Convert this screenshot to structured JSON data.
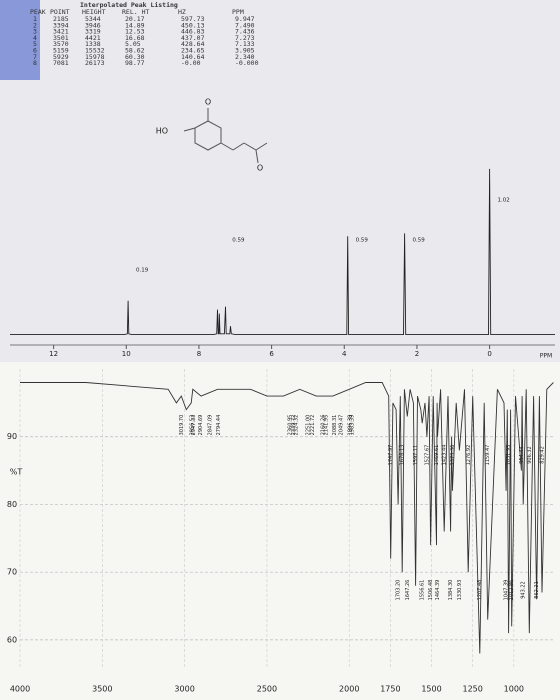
{
  "peak_listing": {
    "title": "Interpolated Peak Listing",
    "headers": [
      "PEAK",
      "POINT",
      "HEIGHT",
      "REL. HT",
      "HZ",
      "PPM"
    ],
    "rows": [
      [
        "1",
        "2185",
        "5344",
        "20.17",
        "597.73",
        "9.947"
      ],
      [
        "2",
        "3394",
        "3946",
        "14.89",
        "450.13",
        "7.490"
      ],
      [
        "3",
        "3421",
        "3319",
        "12.53",
        "446.83",
        "7.436"
      ],
      [
        "4",
        "3501",
        "4421",
        "16.68",
        "437.07",
        "7.273"
      ],
      [
        "5",
        "3570",
        "1338",
        "5.05",
        "428.64",
        "7.133"
      ],
      [
        "6",
        "5159",
        "15532",
        "58.62",
        "234.65",
        "3.905"
      ],
      [
        "7",
        "5929",
        "15978",
        "60.30",
        "140.64",
        "2.340"
      ],
      [
        "8",
        "7081",
        "26173",
        "98.77",
        "-0.00",
        "-0.000"
      ]
    ]
  },
  "structure": {
    "labels": [
      "HO",
      "O",
      "O"
    ]
  },
  "chart_data": [
    {
      "type": "line",
      "xlabel": "PPM",
      "color": "#222222",
      "x": [
        13.2,
        10.05,
        9.97,
        9.95,
        9.93,
        9.85,
        7.6,
        7.51,
        7.49,
        7.47,
        7.45,
        7.44,
        7.42,
        7.3,
        7.27,
        7.25,
        7.15,
        7.13,
        7.11,
        7.0,
        3.93,
        3.905,
        3.88,
        2.37,
        2.34,
        2.31,
        0.03,
        0,
        -0.03,
        -1.8
      ],
      "values": [
        0,
        0,
        0.5,
        20.17,
        0.5,
        0,
        0,
        0.5,
        14.89,
        0.5,
        0.5,
        12.53,
        0.5,
        0.5,
        16.68,
        0.5,
        0.5,
        5.05,
        0.5,
        0,
        0,
        58.62,
        0,
        0,
        60.3,
        0,
        0,
        98.77,
        0,
        0
      ],
      "xlim": [
        13.2,
        -1.8
      ],
      "ylim": [
        -2,
        110
      ],
      "xticks": [
        12,
        10,
        8,
        6,
        4,
        2,
        0
      ],
      "integrals": {
        "x": [
          9.95,
          7.3,
          3.905,
          2.34,
          0
        ],
        "values": [
          0.19,
          0.59,
          0.59,
          0.59,
          1.02
        ]
      }
    },
    {
      "type": "line",
      "ylabel": "%T",
      "color": "#333333",
      "grid": true,
      "x": [
        4000,
        3600,
        3100,
        3050,
        3020,
        2990,
        2960,
        2950,
        2900,
        2800,
        2600,
        2500,
        2400,
        2300,
        2200,
        2100,
        2000,
        1900,
        1800,
        1760,
        1748,
        1735,
        1715,
        1703,
        1690,
        1678,
        1665,
        1647,
        1630,
        1610,
        1597,
        1585,
        1565,
        1557,
        1540,
        1528,
        1515,
        1506,
        1490,
        1470,
        1466,
        1464,
        1445,
        1423,
        1400,
        1384,
        1378,
        1373,
        1350,
        1331,
        1300,
        1277,
        1250,
        1207,
        1180,
        1159,
        1100,
        1060,
        1047,
        1040,
        1032,
        1020,
        1013,
        990,
        954,
        950,
        943,
        925,
        906,
        880,
        862,
        845,
        829,
        800,
        760
      ],
      "values": [
        98,
        98,
        97,
        95,
        96,
        94,
        95,
        97,
        96,
        97,
        97,
        96,
        96,
        97,
        96,
        96,
        97,
        98,
        98,
        96,
        72,
        95,
        94,
        80,
        96,
        70,
        97,
        93,
        97,
        95,
        68,
        96,
        94,
        92,
        95,
        90,
        96,
        74,
        96,
        74,
        95,
        90,
        97,
        76,
        96,
        76,
        90,
        82,
        95,
        88,
        97,
        70,
        96,
        58,
        95,
        63,
        97,
        95,
        82,
        94,
        61,
        94,
        62,
        96,
        85,
        96,
        80,
        97,
        61,
        96,
        66,
        96,
        67,
        97,
        98
      ],
      "xlim": [
        4000,
        750
      ],
      "ylim": [
        56,
        100
      ],
      "xticks": [
        4000,
        3500,
        3000,
        2500,
        2000,
        1750,
        1500,
        1250,
        1000
      ],
      "yticks": [
        60,
        70,
        80,
        90
      ],
      "peaks": {
        "x": [
          3019.7,
          2956.53,
          2947.33,
          2904.69,
          2847.09,
          2794.44,
          2360.95,
          2339.72,
          2324.32,
          2251.0,
          2221.72,
          2160.26,
          2141.95,
          2088.31,
          2049.47,
          1996.39,
          1983.39,
          1747.97,
          1703.2,
          1678.13,
          1647.26,
          1597.11,
          1556.61,
          1527.67,
          1506.48,
          1469.61,
          1464.39,
          1423.44,
          1384.3,
          1373.36,
          1330.93,
          1276.92,
          1207.48,
          1159.47,
          1047.39,
          1031.95,
          1012.86,
          954.44,
          943.22,
          906.32,
          862.21,
          829.42
        ],
        "value_labels": [
          "3019.70",
          "2956.53",
          "2947.33",
          "2904.69",
          "2847.09",
          "2794.44",
          "2360.95",
          "2339.72",
          "2324.32",
          "2251.00",
          "2221.72",
          "2160.26",
          "2141.95",
          "2088.31",
          "2049.47",
          "1996.39",
          "1983.39",
          "1747.97",
          "1703.20",
          "1678.13",
          "1647.26",
          "1597.11",
          "1556.61",
          "1527.67",
          "1506.48",
          "1469.61",
          "1464.39",
          "1423.44",
          "1384.30",
          "1373.36",
          "1330.93",
          "1276.92",
          "1207.48",
          "1159.47",
          "1047.39",
          "1031.95",
          "1012.86",
          "954.44",
          "943.22",
          "906.32",
          "862.21",
          "829.42"
        ]
      }
    }
  ]
}
